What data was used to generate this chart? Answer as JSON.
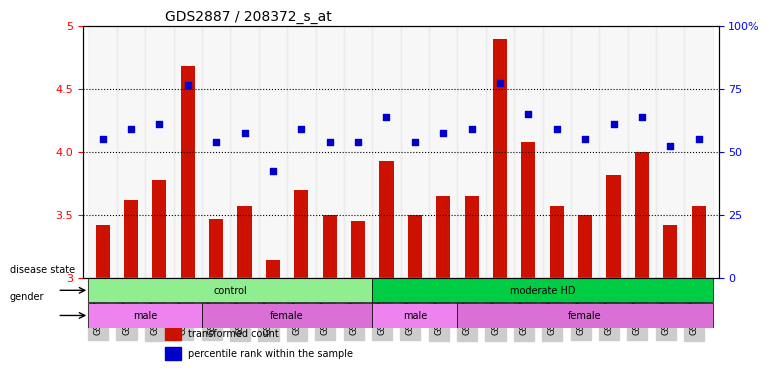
{
  "title": "GDS2887 / 208372_s_at",
  "samples": [
    "GSM217771",
    "GSM217772",
    "GSM217773",
    "GSM217774",
    "GSM217775",
    "GSM217766",
    "GSM217767",
    "GSM217768",
    "GSM217769",
    "GSM217770",
    "GSM217784",
    "GSM217785",
    "GSM217786",
    "GSM217787",
    "GSM217776",
    "GSM217777",
    "GSM217778",
    "GSM217779",
    "GSM217780",
    "GSM217781",
    "GSM217782",
    "GSM217783"
  ],
  "bar_values": [
    3.42,
    3.62,
    3.78,
    4.68,
    3.47,
    3.57,
    3.14,
    3.7,
    3.5,
    3.45,
    3.93,
    3.5,
    3.65,
    3.65,
    4.9,
    4.08,
    3.57,
    3.5,
    3.82,
    4.0,
    3.42,
    3.57
  ],
  "dot_values": [
    4.1,
    4.18,
    4.22,
    4.53,
    4.08,
    4.15,
    3.85,
    4.18,
    4.08,
    4.08,
    4.28,
    4.08,
    4.15,
    4.18,
    4.55,
    4.3,
    4.18,
    4.1,
    4.22,
    4.28,
    4.05,
    4.1
  ],
  "bar_color": "#CC1100",
  "dot_color": "#0000CC",
  "ylim_left": [
    3.0,
    5.0
  ],
  "ylim_right": [
    0,
    100
  ],
  "yticks_left": [
    3.0,
    3.5,
    4.0,
    4.5,
    5.0
  ],
  "yticks_right": [
    0,
    25,
    50,
    75,
    100
  ],
  "ytick_labels_right": [
    "0",
    "25",
    "50",
    "75",
    "100%"
  ],
  "hlines": [
    3.5,
    4.0,
    4.5
  ],
  "disease_state_groups": [
    {
      "label": "control",
      "start": 0,
      "end": 10,
      "color": "#90EE90"
    },
    {
      "label": "moderate HD",
      "start": 10,
      "end": 22,
      "color": "#00CC44"
    }
  ],
  "gender_groups": [
    {
      "label": "male",
      "start": 0,
      "end": 4,
      "color": "#EE82EE"
    },
    {
      "label": "female",
      "start": 4,
      "end": 10,
      "color": "#DD66DD"
    },
    {
      "label": "male",
      "start": 10,
      "end": 13,
      "color": "#EE82EE"
    },
    {
      "label": "female",
      "start": 13,
      "end": 22,
      "color": "#DD66DD"
    }
  ],
  "legend_items": [
    {
      "label": "transformed count",
      "color": "#CC1100",
      "marker": "s"
    },
    {
      "label": "percentile rank within the sample",
      "color": "#0000CC",
      "marker": "s"
    }
  ]
}
